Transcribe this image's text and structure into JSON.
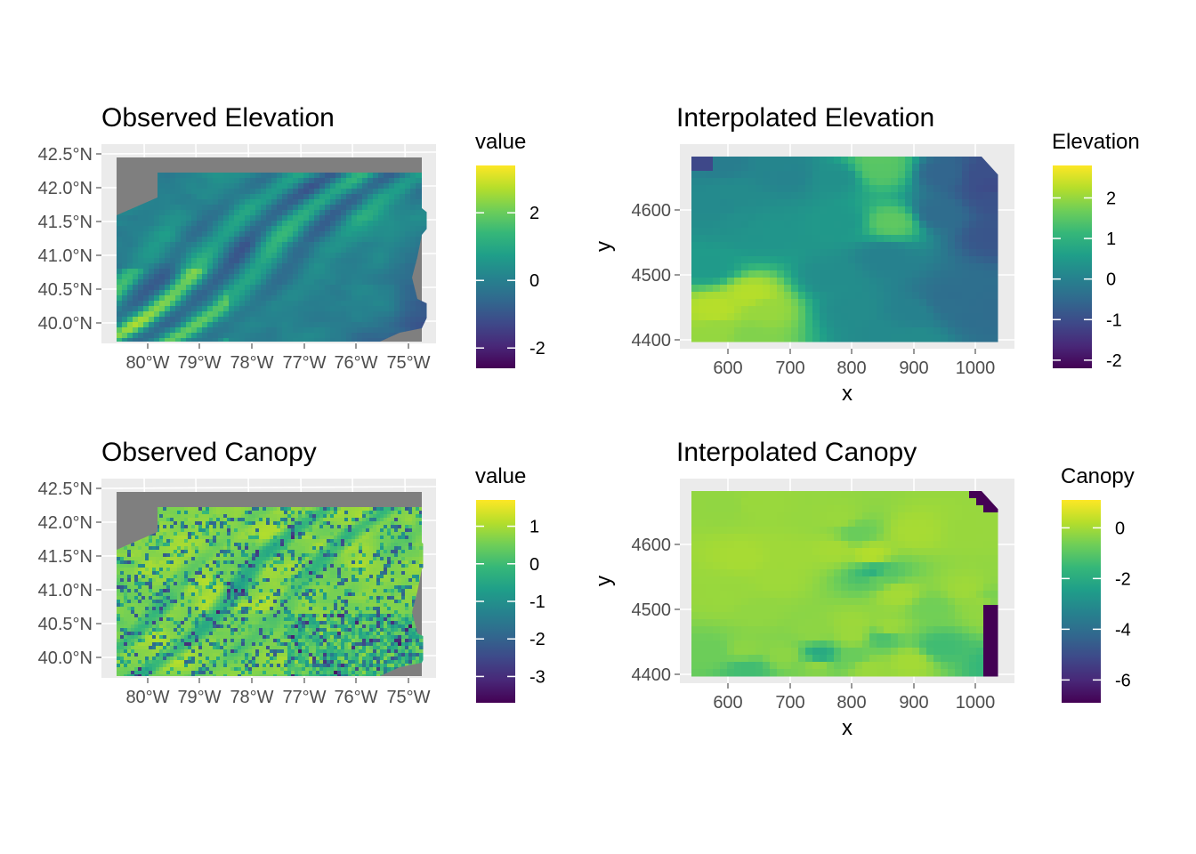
{
  "panels": [
    {
      "title": "Observed Elevation",
      "legend_title": "value",
      "map_kind": "observed_raster",
      "variable": "elevation",
      "lat_ticks": [
        "42.5°N",
        "42.0°N",
        "41.5°N",
        "41.0°N",
        "40.5°N",
        "40.0°N"
      ],
      "lon_ticks": [
        "80°W",
        "79°W",
        "78°W",
        "77°W",
        "76°W",
        "75°W"
      ],
      "legend_range": [
        -2.6,
        3.4
      ],
      "legend_ticks": [
        {
          "value": 2,
          "label": "2"
        },
        {
          "value": 0,
          "label": "0"
        },
        {
          "value": -2,
          "label": "-2"
        }
      ]
    },
    {
      "title": "Interpolated Elevation",
      "legend_title": "Elevation",
      "map_kind": "interpolated_grid",
      "variable": "elevation",
      "xlabel": "x",
      "ylabel": "y",
      "x_ticks": [
        "600",
        "700",
        "800",
        "900",
        "1000"
      ],
      "y_ticks": [
        "4600",
        "4500",
        "4400"
      ],
      "legend_range": [
        -2.2,
        2.8
      ],
      "legend_ticks": [
        {
          "value": 2,
          "label": "2"
        },
        {
          "value": 1,
          "label": "1"
        },
        {
          "value": 0,
          "label": "0"
        },
        {
          "value": -1,
          "label": "-1"
        },
        {
          "value": -2,
          "label": "-2"
        }
      ]
    },
    {
      "title": "Observed Canopy",
      "legend_title": "value",
      "map_kind": "observed_raster",
      "variable": "canopy",
      "lat_ticks": [
        "42.5°N",
        "42.0°N",
        "41.5°N",
        "41.0°N",
        "40.5°N",
        "40.0°N"
      ],
      "lon_ticks": [
        "80°W",
        "79°W",
        "78°W",
        "77°W",
        "76°W",
        "75°W"
      ],
      "legend_range": [
        -3.7,
        1.7
      ],
      "legend_ticks": [
        {
          "value": 1,
          "label": "1"
        },
        {
          "value": 0,
          "label": "0"
        },
        {
          "value": -1,
          "label": "-1"
        },
        {
          "value": -2,
          "label": "-2"
        },
        {
          "value": -3,
          "label": "-3"
        }
      ]
    },
    {
      "title": "Interpolated Canopy",
      "legend_title": "Canopy",
      "map_kind": "interpolated_grid",
      "variable": "canopy",
      "xlabel": "x",
      "ylabel": "y",
      "x_ticks": [
        "600",
        "700",
        "800",
        "900",
        "1000"
      ],
      "y_ticks": [
        "4600",
        "4500",
        "4400"
      ],
      "legend_range": [
        -6.9,
        1.1
      ],
      "legend_ticks": [
        {
          "value": 0,
          "label": "0"
        },
        {
          "value": -2,
          "label": "-2"
        },
        {
          "value": -4,
          "label": "-4"
        },
        {
          "value": -6,
          "label": "-6"
        }
      ]
    }
  ],
  "colors": {
    "panel_background": "#ebebeb",
    "grid": "#ffffff",
    "raster_nodata": "#7f7f7f",
    "tick_text": "#4d4d4d",
    "viridis": [
      "#440154",
      "#482878",
      "#3e4989",
      "#31688e",
      "#26828e",
      "#1f9e89",
      "#35b779",
      "#6ece58",
      "#b5de2b",
      "#fde725"
    ]
  }
}
